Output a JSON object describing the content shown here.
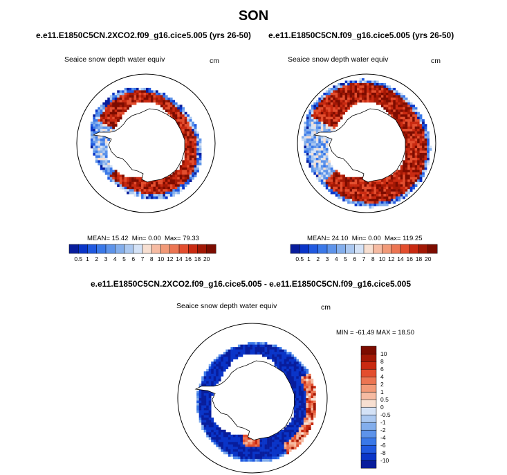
{
  "season": "SON",
  "panels": {
    "top_left": {
      "case": "e.e11.E1850C5CN.2XCO2.f09_g16.cice5.005 (yrs 26-50)",
      "field": "Seaice snow depth water equiv",
      "units": "cm",
      "stats": {
        "mean_label": "MEAN=",
        "mean": "15.42",
        "min_label": "Min=",
        "min": "0.00",
        "max_label": "Max=",
        "max": "79.33"
      }
    },
    "top_right": {
      "case": "e.e11.E1850C5CN.f09_g16.cice5.005 (yrs 26-50)",
      "field": "Seaice snow depth water equiv",
      "units": "cm",
      "stats": {
        "mean_label": "MEAN=",
        "mean": "24.10",
        "min_label": "Min=",
        "min": "0.00",
        "max_label": "Max=",
        "max": "119.25"
      }
    },
    "diff": {
      "case": "e.e11.E1850C5CN.2XCO2.f09_g16.cice5.005 - e.e11.E1850C5CN.f09_g16.cice5.005",
      "field": "Seaice snow depth water equiv",
      "units": "cm",
      "minmax": "MIN = -61.49 MAX =  18.50"
    }
  },
  "chart_data": [
    {
      "type": "heatmap",
      "projection": "south-polar-stereographic",
      "title": "e.e11.E1850C5CN.2XCO2.f09_g16.cice5.005 (yrs 26-50)",
      "variable": "Seaice snow depth water equiv",
      "units": "cm",
      "mean": 15.42,
      "min": 0.0,
      "max": 79.33,
      "colorbar_levels": [
        0.5,
        1,
        2,
        3,
        4,
        5,
        6,
        7,
        8,
        10,
        12,
        14,
        16,
        18,
        20
      ]
    },
    {
      "type": "heatmap",
      "projection": "south-polar-stereographic",
      "title": "e.e11.E1850C5CN.f09_g16.cice5.005 (yrs 26-50)",
      "variable": "Seaice snow depth water equiv",
      "units": "cm",
      "mean": 24.1,
      "min": 0.0,
      "max": 119.25,
      "colorbar_levels": [
        0.5,
        1,
        2,
        3,
        4,
        5,
        6,
        7,
        8,
        10,
        12,
        14,
        16,
        18,
        20
      ]
    },
    {
      "type": "heatmap",
      "projection": "south-polar-stereographic",
      "title": "e.e11.E1850C5CN.2XCO2.f09_g16.cice5.005 - e.e11.E1850C5CN.f09_g16.cice5.005",
      "variable": "Seaice snow depth water equiv",
      "units": "cm",
      "min": -61.49,
      "max": 18.5,
      "colorbar_levels": [
        -10,
        -8,
        -6,
        -4,
        -2,
        -1,
        -0.5,
        0,
        0.5,
        1,
        2,
        4,
        6,
        8,
        10
      ]
    }
  ],
  "colors": {
    "seq": [
      "#081d9c",
      "#0a35c8",
      "#2059e0",
      "#3a78e8",
      "#5d93ea",
      "#83aeec",
      "#abc8f0",
      "#d4e2f6",
      "#f7dfd1",
      "#f6bba2",
      "#f29a78",
      "#ec7552",
      "#e34e2e",
      "#c92a11",
      "#a21805",
      "#7c0c00"
    ],
    "diff": [
      "#081d9c",
      "#0a35c8",
      "#2059e0",
      "#3a78e8",
      "#5d93ea",
      "#83aeec",
      "#abc8f0",
      "#d4e2f6",
      "#f7dfd1",
      "#f6bba2",
      "#f29a78",
      "#ec7552",
      "#e34e2e",
      "#c92a11",
      "#a21805",
      "#7c0c00"
    ],
    "land": "#ffffff",
    "coast": "#000000"
  }
}
